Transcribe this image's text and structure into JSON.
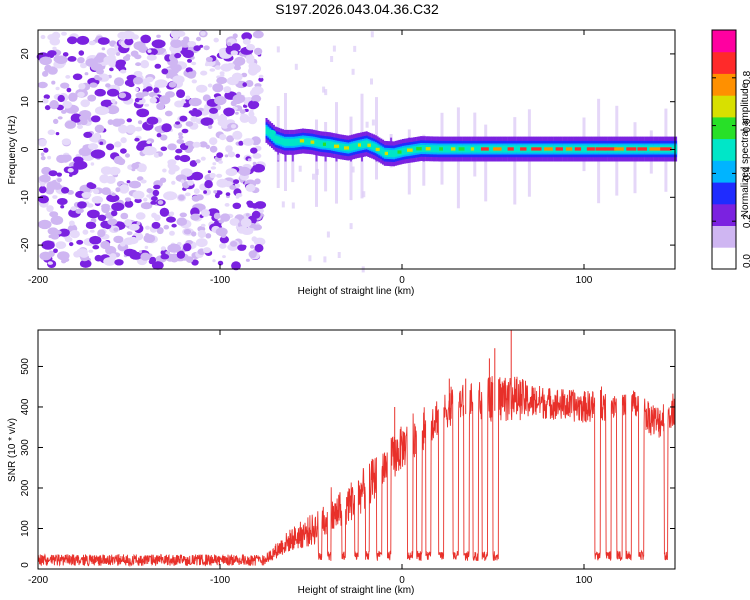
{
  "title": "S197.2026.043.04.36.C32",
  "colors": {
    "snr_line": "#e8302a",
    "spectrogram_noise": "#7a2bd8",
    "colormap": [
      "#ffffff",
      "#cfb6f2",
      "#7b22e0",
      "#1f2cff",
      "#00b4ff",
      "#00e6c8",
      "#28e028",
      "#d8e000",
      "#ff9000",
      "#ff2a2a",
      "#ff00a0"
    ]
  },
  "chart_data": [
    {
      "type": "heatmap",
      "name": "spectrogram",
      "xlabel": "Height of straight line (km)",
      "ylabel": "Frequency (Hz)",
      "xlim": [
        -200,
        150
      ],
      "ylim": [
        -25,
        25
      ],
      "xticks": [
        -200,
        -100,
        0,
        100
      ],
      "xtick_labels": [
        "-200",
        "-100",
        "0",
        "100"
      ],
      "yticks": [
        20,
        10,
        0,
        -10,
        -20
      ],
      "ytick_labels": [
        "20",
        "10",
        "0",
        "-10",
        "-20"
      ],
      "noise_region": [
        -200,
        -76
      ],
      "signal_onset_km": -75,
      "signal_trace": {
        "x": [
          -75,
          -70,
          -65,
          -60,
          -55,
          -50,
          -45,
          -40,
          -35,
          -30,
          -25,
          -20,
          -15,
          -10,
          -5,
          0,
          10,
          20,
          40,
          60,
          80,
          100,
          120,
          150
        ],
        "freq_hz": [
          4,
          2.2,
          1.5,
          1.5,
          1.8,
          1.6,
          1.2,
          1.0,
          0.6,
          0.3,
          0.8,
          1.2,
          0.4,
          -0.8,
          -0.9,
          -0.4,
          0.2,
          0.1,
          0.1,
          0.1,
          0.1,
          0.1,
          0.1,
          0.1
        ]
      },
      "colorbar": {
        "label": "Normalized spectral amplitude",
        "range": [
          0,
          1
        ],
        "ticks": [
          0.0,
          0.2,
          0.4,
          0.6,
          0.8
        ],
        "tick_labels": [
          "0.0",
          "0.2",
          "0.4",
          "0.6",
          "0.8"
        ]
      }
    },
    {
      "type": "line",
      "name": "snr",
      "xlabel": "Height of straight line (km)",
      "ylabel": "SNR (10 * v/v)",
      "xlim": [
        -200,
        150
      ],
      "ylim": [
        0,
        590
      ],
      "xticks": [
        -200,
        -100,
        0,
        100
      ],
      "xtick_labels": [
        "-200",
        "-100",
        "0",
        "100"
      ],
      "yticks": [
        0,
        100,
        200,
        300,
        400,
        500
      ],
      "ytick_labels": [
        "0",
        "100",
        "200",
        "300",
        "400",
        "500"
      ],
      "series": [
        {
          "name": "SNR",
          "x": [
            -200,
            -150,
            -100,
            -75,
            -65,
            -60,
            -50,
            -40,
            -30,
            -20,
            -10,
            0,
            10,
            20,
            30,
            40,
            50,
            60,
            70,
            80,
            90,
            100,
            110,
            120,
            130,
            140,
            150
          ],
          "base": [
            20,
            22,
            22,
            24,
            60,
            75,
            95,
            120,
            160,
            200,
            250,
            300,
            340,
            380,
            410,
            415,
            420,
            425,
            415,
            410,
            405,
            400,
            405,
            410,
            400,
            360,
            400
          ],
          "jitter": [
            10,
            10,
            10,
            12,
            25,
            30,
            40,
            45,
            50,
            55,
            55,
            55,
            55,
            50,
            45,
            45,
            60,
            60,
            45,
            40,
            40,
            40,
            40,
            40,
            40,
            45,
            45
          ]
        }
      ],
      "dropouts": [
        {
          "x": -46,
          "w": 2
        },
        {
          "x": -41,
          "w": 2
        },
        {
          "x": -33,
          "w": 2
        },
        {
          "x": -26,
          "w": 2
        },
        {
          "x": -20,
          "w": 2
        },
        {
          "x": -14,
          "w": 3
        },
        {
          "x": -8,
          "w": 2
        },
        {
          "x": 3,
          "w": 3
        },
        {
          "x": 8,
          "w": 3
        },
        {
          "x": 13,
          "w": 3
        },
        {
          "x": 20,
          "w": 3
        },
        {
          "x": 28,
          "w": 3
        },
        {
          "x": 34,
          "w": 3
        },
        {
          "x": 39,
          "w": 3
        },
        {
          "x": 44,
          "w": 3
        },
        {
          "x": 50,
          "w": 3
        },
        {
          "x": 106,
          "w": 3
        },
        {
          "x": 112,
          "w": 3
        },
        {
          "x": 118,
          "w": 3
        },
        {
          "x": 123,
          "w": 3
        },
        {
          "x": 130,
          "w": 3
        },
        {
          "x": 144,
          "w": 2
        }
      ],
      "spikes": [
        {
          "x": 27,
          "y": 450
        },
        {
          "x": 35,
          "y": 470
        },
        {
          "x": 48,
          "y": 520
        },
        {
          "x": 51,
          "y": 545
        },
        {
          "x": 60,
          "y": 590
        },
        {
          "x": 26,
          "y": 470
        },
        {
          "x": -4,
          "y": 400
        }
      ]
    }
  ]
}
